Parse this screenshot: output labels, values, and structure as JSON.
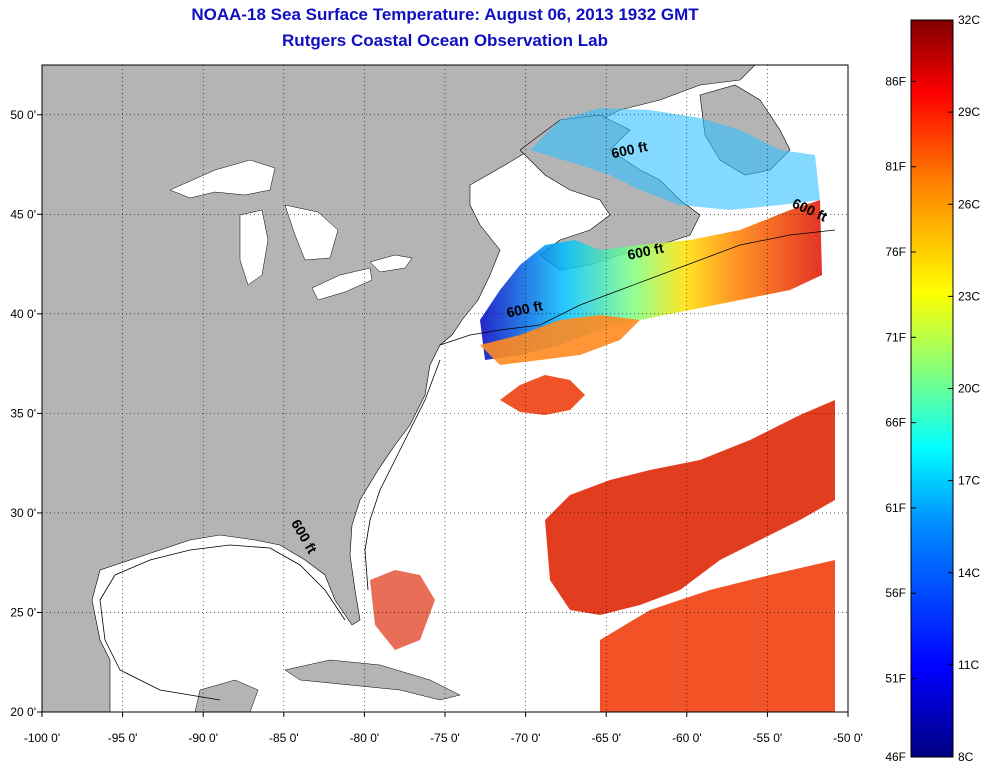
{
  "header": {
    "title": "NOAA-18 Sea Surface Temperature:  August 06, 2013 1932 GMT",
    "subtitle": "Rutgers Coastal Ocean Observation Lab"
  },
  "map": {
    "lon_range": [
      -100,
      -50
    ],
    "lat_range": [
      20,
      52.5
    ],
    "x_ticks": [
      {
        "lon": -100,
        "label": "-100 0'"
      },
      {
        "lon": -95,
        "label": "-95 0'"
      },
      {
        "lon": -90,
        "label": "-90 0'"
      },
      {
        "lon": -85,
        "label": "-85 0'"
      },
      {
        "lon": -80,
        "label": "-80 0'"
      },
      {
        "lon": -75,
        "label": "-75 0'"
      },
      {
        "lon": -70,
        "label": "-70 0'"
      },
      {
        "lon": -65,
        "label": "-65 0'"
      },
      {
        "lon": -60,
        "label": "-60 0'"
      },
      {
        "lon": -55,
        "label": "-55 0'"
      },
      {
        "lon": -50,
        "label": "-50 0'"
      }
    ],
    "y_ticks": [
      {
        "lat": 20,
        "label": "20 0'"
      },
      {
        "lat": 25,
        "label": "25 0'"
      },
      {
        "lat": 30,
        "label": "30 0'"
      },
      {
        "lat": 35,
        "label": "35 0'"
      },
      {
        "lat": 40,
        "label": "40 0'"
      },
      {
        "lat": 45,
        "label": "45 0'"
      },
      {
        "lat": 50,
        "label": "50 0'"
      }
    ],
    "grid": "dotted",
    "land_color": "#b4b4b4",
    "no_data_color": "#ffffff",
    "contour_labels": [
      {
        "text": "600 ft",
        "lon": -63.5,
        "lat": 48.0
      },
      {
        "text": "600 ft",
        "lon": -52.5,
        "lat": 45.0
      },
      {
        "text": "600 ft",
        "lon": -62.5,
        "lat": 42.9
      },
      {
        "text": "600 ft",
        "lon": -70.0,
        "lat": 40.0
      },
      {
        "text": "600 ft",
        "lon": -84.0,
        "lat": 28.7
      }
    ]
  },
  "colorbar": {
    "celsius": [
      {
        "value": 32,
        "label": "32C"
      },
      {
        "value": 29,
        "label": "29C"
      },
      {
        "value": 26,
        "label": "26C"
      },
      {
        "value": 23,
        "label": "23C"
      },
      {
        "value": 20,
        "label": "20C"
      },
      {
        "value": 17,
        "label": "17C"
      },
      {
        "value": 14,
        "label": "14C"
      },
      {
        "value": 11,
        "label": "11C"
      },
      {
        "value": 8,
        "label": "8C"
      }
    ],
    "fahrenheit": [
      {
        "value": 86,
        "label": "86F"
      },
      {
        "value": 81,
        "label": "81F"
      },
      {
        "value": 76,
        "label": "76F"
      },
      {
        "value": 71,
        "label": "71F"
      },
      {
        "value": 66,
        "label": "66F"
      },
      {
        "value": 61,
        "label": "61F"
      },
      {
        "value": 56,
        "label": "56F"
      },
      {
        "value": 51,
        "label": "51F"
      },
      {
        "value": 46,
        "label": "46F"
      }
    ],
    "range_c": [
      8,
      32
    ],
    "colors": [
      "#000080",
      "#0000ff",
      "#0080ff",
      "#00ffff",
      "#80ff80",
      "#ffff00",
      "#ff8000",
      "#ff0000",
      "#800000"
    ]
  }
}
